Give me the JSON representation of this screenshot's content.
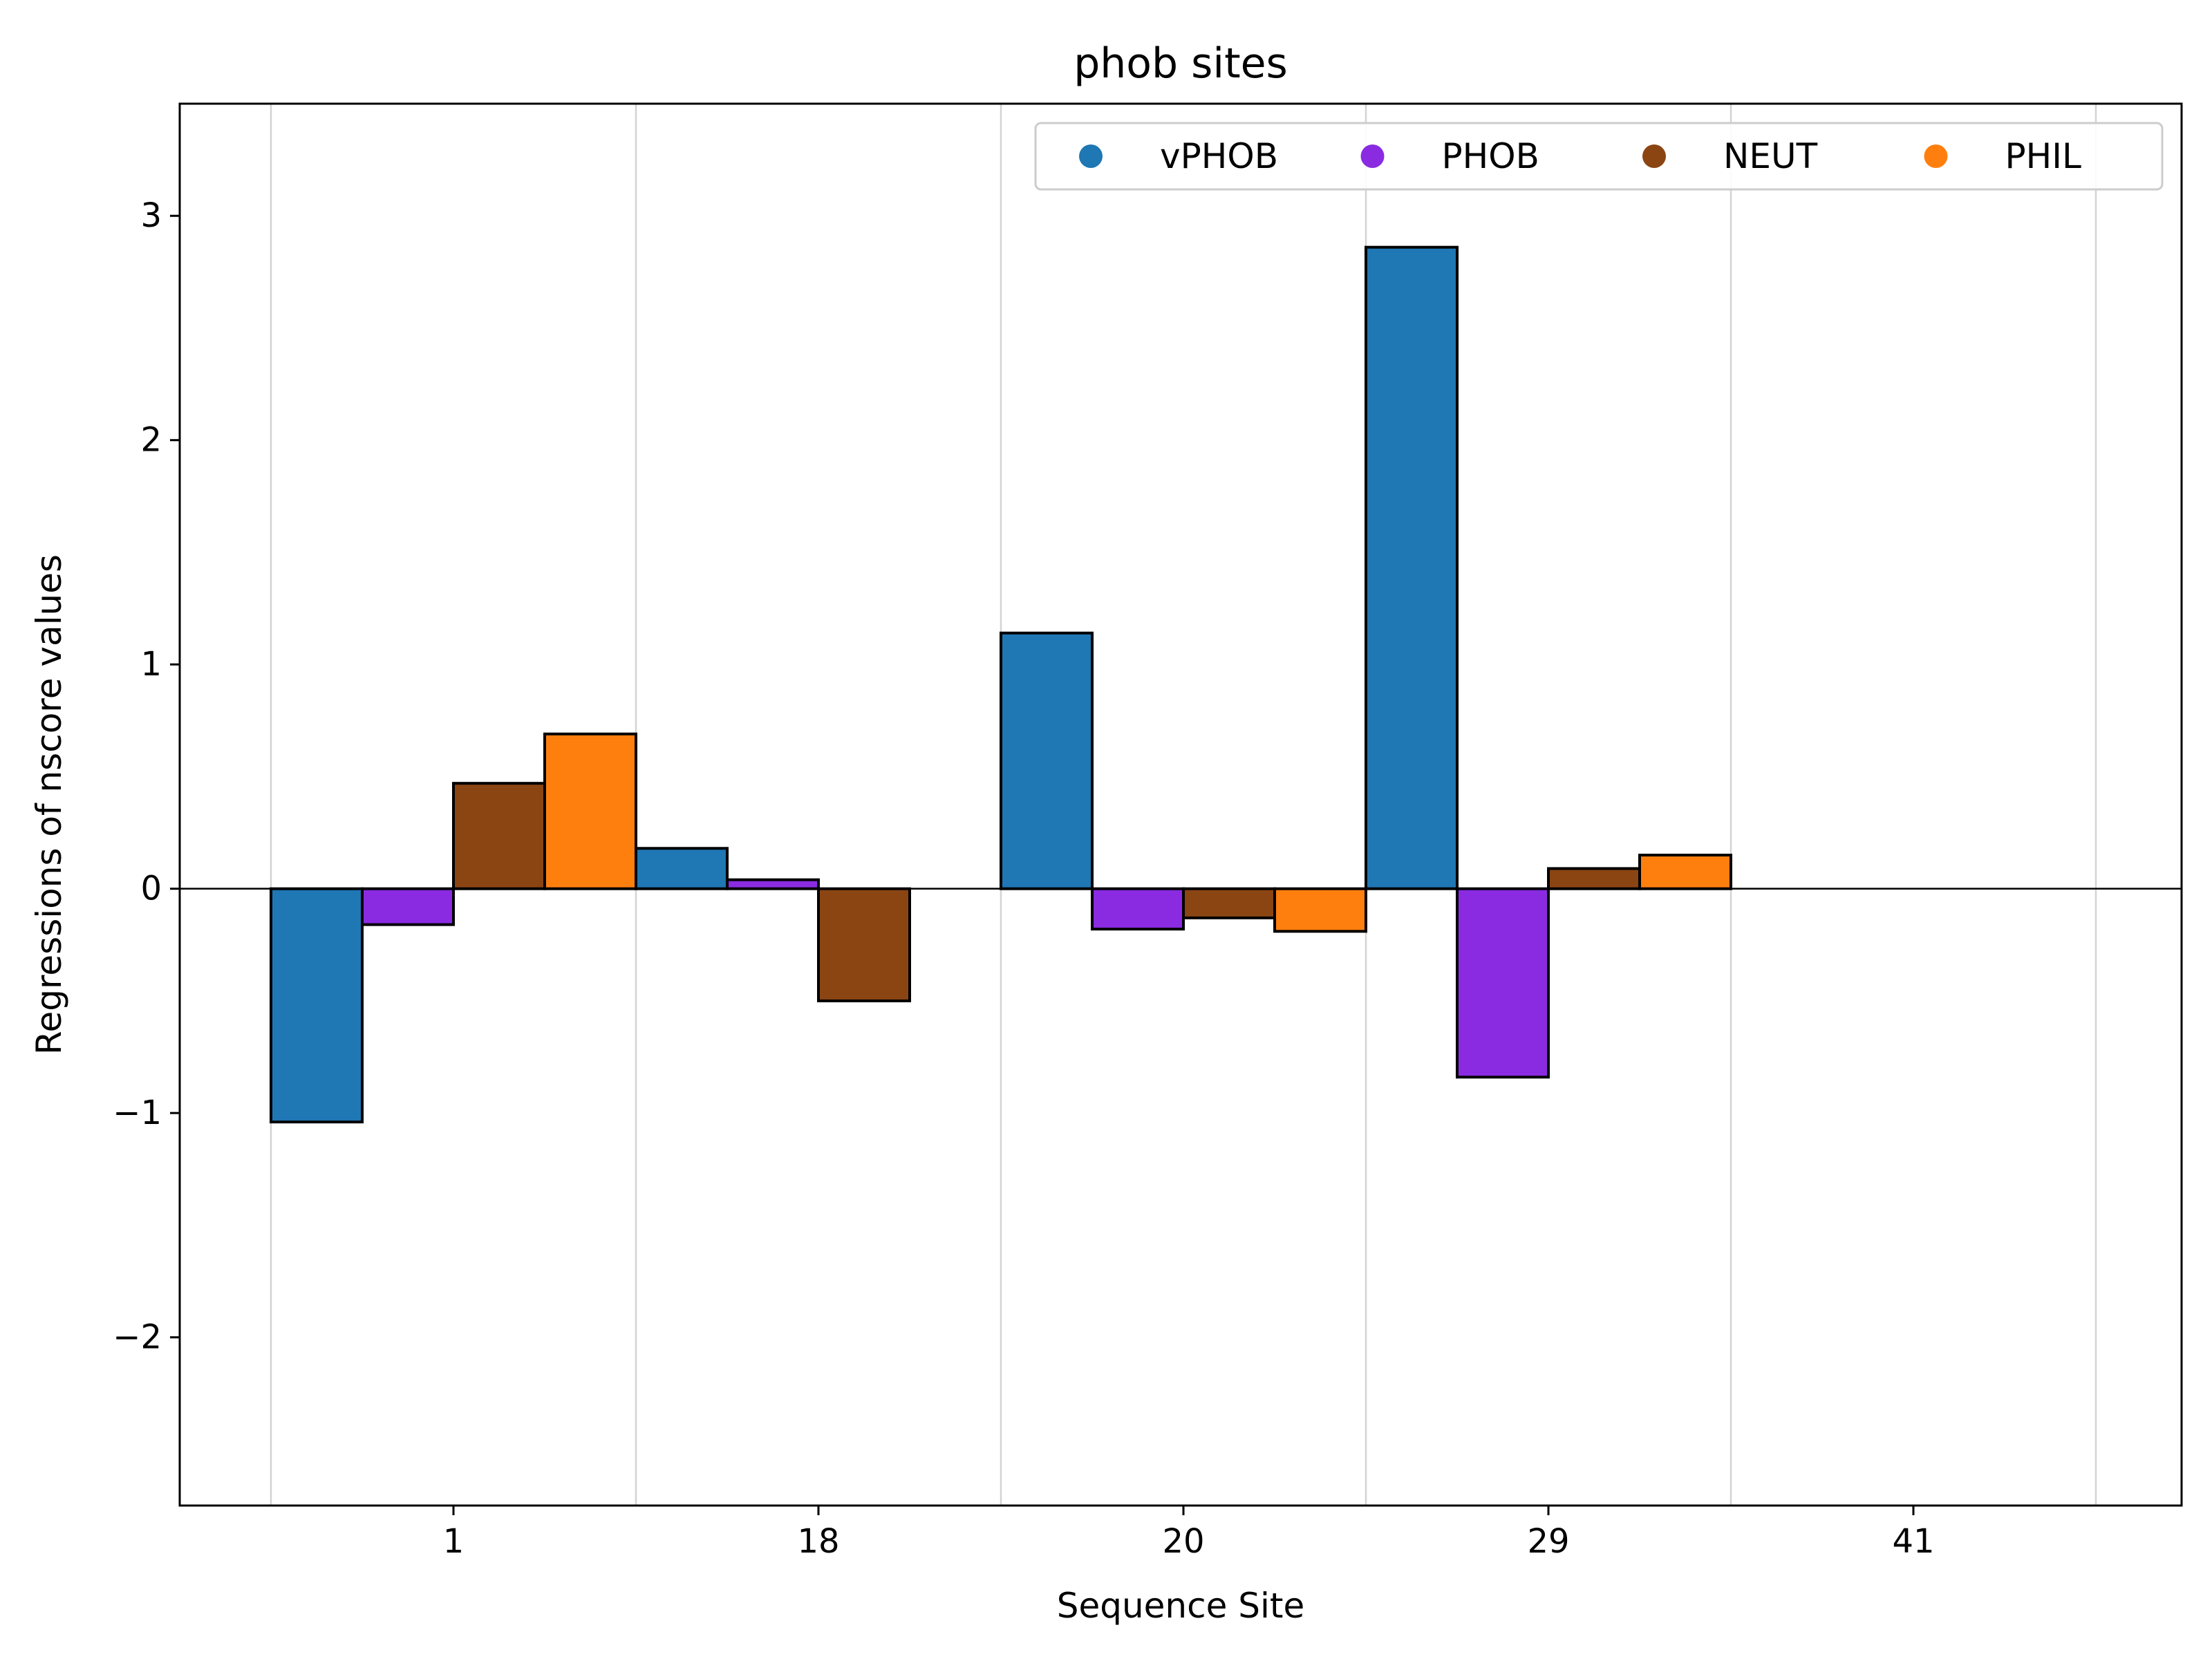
{
  "chart_data": {
    "type": "bar",
    "title": "phob sites",
    "xlabel": "Sequence Site",
    "ylabel": "Regressions of nscore values",
    "categories": [
      "1",
      "18",
      "20",
      "29",
      "41"
    ],
    "ylim": [
      -2.75,
      3.5
    ],
    "yticks": [
      -2,
      -1,
      0,
      1,
      2,
      3
    ],
    "ytick_labels": [
      "−2",
      "−1",
      "0",
      "1",
      "2",
      "3"
    ],
    "grid": "vertical lines between site groups",
    "legend_position": "top-right",
    "series": [
      {
        "name": "vPHOB",
        "color": "#1f77b4",
        "values": [
          -1.04,
          0.18,
          1.14,
          2.86,
          null
        ]
      },
      {
        "name": "PHOB",
        "color": "#8a2be2",
        "values": [
          -0.16,
          0.04,
          -0.18,
          -0.84,
          null
        ]
      },
      {
        "name": "NEUT",
        "color": "#8b4513",
        "values": [
          0.47,
          -0.5,
          -0.13,
          0.09,
          null
        ]
      },
      {
        "name": "PHIL",
        "color": "#ff7f0e",
        "values": [
          0.69,
          null,
          -0.19,
          0.15,
          null
        ]
      }
    ]
  }
}
